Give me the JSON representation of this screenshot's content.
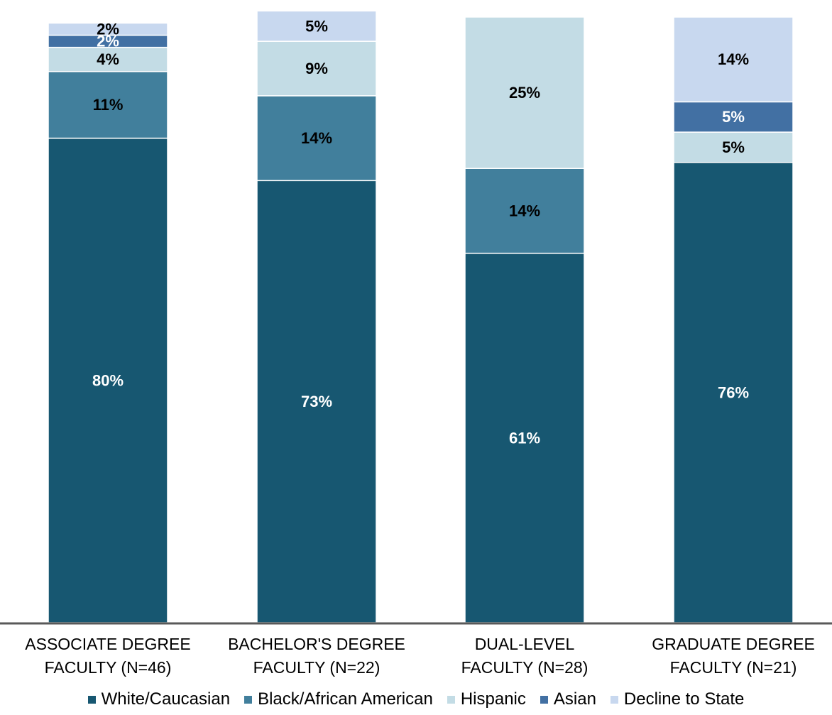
{
  "chart_data": {
    "type": "bar",
    "stacked": true,
    "categories": [
      [
        "ASSOCIATE DEGREE",
        "FACULTY (N=46)"
      ],
      [
        "BACHELOR'S DEGREE",
        "FACULTY (N=22)"
      ],
      [
        "DUAL-LEVEL",
        "FACULTY (N=28)"
      ],
      [
        "GRADUATE DEGREE",
        "FACULTY (N=21)"
      ]
    ],
    "series": [
      {
        "name": "White/Caucasian",
        "color": "#175771",
        "label_color": "#ffffff",
        "values": [
          80,
          73,
          61,
          76
        ],
        "labels": [
          "80%",
          "73%",
          "61%",
          "76%"
        ]
      },
      {
        "name": "Black/African American",
        "color": "#417f9c",
        "label_color": "#000000",
        "values": [
          11,
          14,
          14,
          0
        ],
        "labels": [
          "11%",
          "14%",
          "14%",
          ""
        ]
      },
      {
        "name": "Hispanic",
        "color": "#c3dce5",
        "label_color": "#000000",
        "values": [
          4,
          9,
          25,
          5
        ],
        "labels": [
          "4%",
          "9%",
          "25%",
          "5%"
        ]
      },
      {
        "name": "Asian",
        "color": "#4270a3",
        "label_color": "#ffffff",
        "values": [
          2,
          0,
          0,
          5
        ],
        "labels": [
          "2%",
          "",
          "",
          "5%"
        ]
      },
      {
        "name": "Decline to State",
        "color": "#c8d8ef",
        "label_color": "#000000",
        "values": [
          2,
          5,
          0,
          14
        ],
        "labels": [
          "2%",
          "5%",
          "",
          "14%"
        ]
      }
    ],
    "ylim": [
      0,
      100
    ],
    "grid": false,
    "legend_position": "bottom"
  }
}
